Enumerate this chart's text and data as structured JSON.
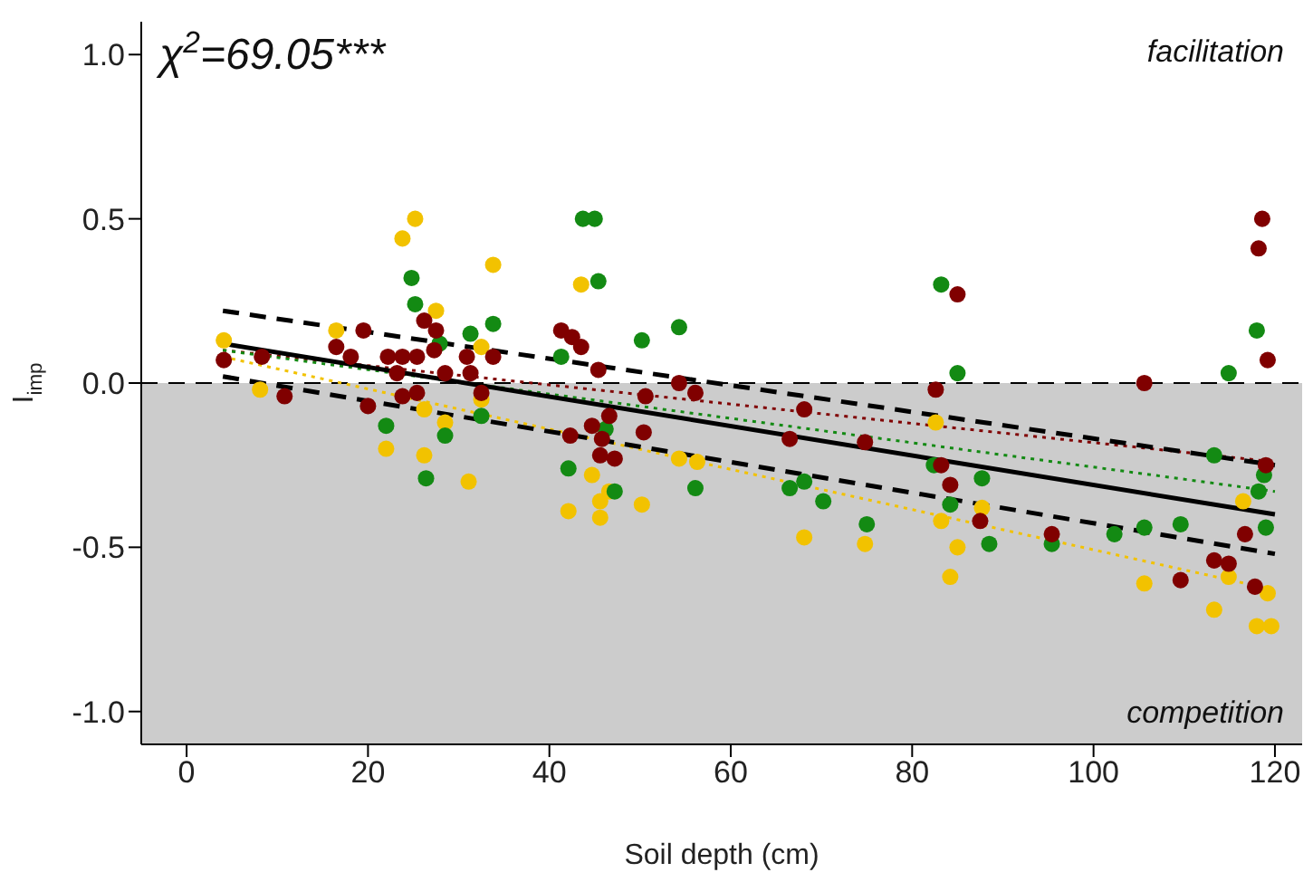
{
  "chart_data": {
    "type": "scatter",
    "xlabel": "Soil depth (cm)",
    "ylabel": "I$_{imp}$",
    "annotations": [
      "χ$^{2}$=69.05***",
      "facilitation",
      "competition"
    ],
    "xlim": [
      -5,
      123
    ],
    "ylim": [
      -1.1,
      1.1
    ],
    "xticks": [
      0,
      20,
      40,
      60,
      80,
      100,
      120
    ],
    "yticks": [
      {
        "value": -1,
        "label": "-1.0"
      },
      {
        "value": -0.5,
        "label": "-0.5"
      },
      {
        "value": 0,
        "label": "0.0"
      },
      {
        "value": 0.5,
        "label": "0.5"
      },
      {
        "value": 1,
        "label": "1.0"
      }
    ],
    "grid": false,
    "legend": false,
    "bands": [
      {
        "axis": "y",
        "from": -1.1,
        "to": 0,
        "color": "#cccccc"
      }
    ],
    "ref_lines": [
      {
        "axis": "y",
        "value": 0,
        "color": "#000000",
        "line_style": "dashed"
      }
    ],
    "series": [
      {
        "marker": "circle",
        "color": "#f2c200",
        "x": [
          4.1,
          8.1,
          16.5,
          25.2,
          23.8,
          27.5,
          33.8,
          32.5,
          22,
          26.2,
          26.2,
          28.5,
          31.1,
          32.5,
          43.5,
          44.7,
          42.1,
          45.6,
          45.6,
          46.6,
          50.2,
          54.3,
          56.3,
          68.1,
          74.8,
          82.6,
          83.2,
          85,
          84.2,
          87.7,
          105.6,
          113.3,
          114.9,
          116.5,
          119.2,
          118,
          119.6
        ],
        "values": [
          0.13,
          -0.02,
          0.16,
          0.5,
          0.44,
          0.22,
          0.36,
          0.11,
          -0.2,
          -0.22,
          -0.08,
          -0.12,
          -0.3,
          -0.05,
          0.3,
          -0.28,
          -0.39,
          -0.41,
          -0.36,
          -0.33,
          -0.37,
          -0.23,
          -0.24,
          -0.47,
          -0.49,
          -0.12,
          -0.42,
          -0.5,
          -0.59,
          -0.38,
          -0.61,
          -0.69,
          -0.59,
          -0.36,
          -0.64,
          -0.74,
          -0.74
        ]
      },
      {
        "marker": "circle",
        "color": "#138a13",
        "x": [
          24.8,
          25.2,
          31.3,
          33.8,
          22,
          28.5,
          26.4,
          32.5,
          27.9,
          43.7,
          45,
          45.4,
          41.3,
          50.2,
          54.3,
          42.1,
          47.2,
          56.1,
          66.5,
          68.1,
          70.2,
          75,
          46.2,
          83.2,
          85,
          114.9,
          118,
          113.3,
          118.8,
          118.2,
          119,
          82.4,
          84.2,
          87.7,
          88.5,
          95.4,
          102.3,
          105.6,
          109.6
        ],
        "values": [
          0.32,
          0.24,
          0.15,
          0.18,
          -0.13,
          -0.16,
          -0.29,
          -0.1,
          0.12,
          0.5,
          0.5,
          0.31,
          0.08,
          0.13,
          0.17,
          -0.26,
          -0.33,
          -0.32,
          -0.32,
          -0.3,
          -0.36,
          -0.43,
          -0.14,
          0.3,
          0.03,
          0.03,
          0.16,
          -0.22,
          -0.28,
          -0.33,
          -0.44,
          -0.25,
          -0.37,
          -0.29,
          -0.49,
          -0.49,
          -0.46,
          -0.44,
          -0.43
        ]
      },
      {
        "marker": "circle",
        "color": "#800000",
        "x": [
          4.1,
          8.3,
          10.8,
          19.5,
          16.5,
          18.1,
          20,
          22.2,
          23.8,
          26.2,
          27.5,
          25.4,
          27.3,
          23.2,
          23.8,
          25.4,
          28.5,
          30.9,
          33.8,
          32.5,
          31.3,
          41.3,
          42.5,
          43.5,
          45.4,
          46.6,
          44.7,
          42.3,
          45.8,
          45.6,
          47.2,
          50.6,
          50.4,
          54.3,
          56.1,
          68.1,
          66.5,
          74.8,
          85,
          118.6,
          118.2,
          119.2,
          82.6,
          105.6,
          83.2,
          84.2,
          87.5,
          95.4,
          109.6,
          113.3,
          114.9,
          116.7,
          117.8,
          119
        ],
        "values": [
          0.07,
          0.08,
          -0.04,
          0.16,
          0.11,
          0.08,
          -0.07,
          0.08,
          0.08,
          0.19,
          0.16,
          0.08,
          0.1,
          0.03,
          -0.04,
          -0.03,
          0.03,
          0.08,
          0.08,
          -0.03,
          0.03,
          0.16,
          0.14,
          0.11,
          0.04,
          -0.1,
          -0.13,
          -0.16,
          -0.17,
          -0.22,
          -0.23,
          -0.04,
          -0.15,
          0,
          -0.03,
          -0.08,
          -0.17,
          -0.18,
          0.27,
          0.5,
          0.41,
          0.07,
          -0.02,
          0,
          -0.25,
          -0.31,
          -0.42,
          -0.46,
          -0.6,
          -0.54,
          -0.55,
          -0.46,
          -0.62,
          -0.25
        ]
      },
      {
        "type": "line",
        "marker": "none",
        "line_style": "dotted",
        "color": "#800000",
        "x": [
          4,
          120
        ],
        "values": [
          0.1,
          -0.24
        ]
      },
      {
        "type": "line",
        "marker": "none",
        "line_style": "dotted",
        "color": "#138a13",
        "x": [
          4,
          120
        ],
        "values": [
          0.1,
          -0.33
        ]
      },
      {
        "type": "line",
        "marker": "none",
        "line_style": "dotted",
        "color": "#f2c200",
        "x": [
          4,
          120
        ],
        "values": [
          0.08,
          -0.63
        ]
      },
      {
        "type": "line",
        "marker": "none",
        "line_style": "dashed",
        "color": "#000000",
        "x": [
          4,
          120
        ],
        "values": [
          0.22,
          -0.25
        ]
      },
      {
        "type": "line",
        "marker": "none",
        "line_style": "dashed",
        "color": "#000000",
        "x": [
          4,
          120
        ],
        "values": [
          0.02,
          -0.52
        ]
      },
      {
        "type": "line",
        "marker": "none",
        "line_style": "solid",
        "color": "#000000",
        "x": [
          4,
          120
        ],
        "values": [
          0.12,
          -0.4
        ]
      }
    ]
  }
}
